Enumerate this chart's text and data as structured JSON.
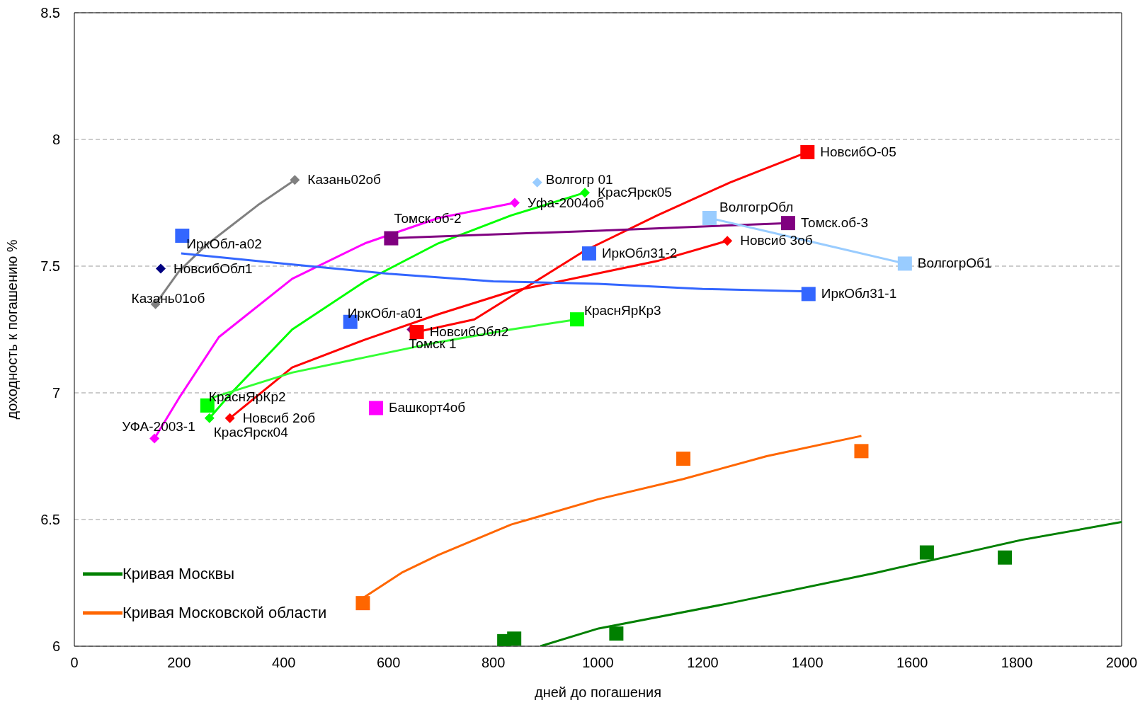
{
  "chart_data": {
    "type": "scatter",
    "xlabel": "дней до погашения",
    "ylabel": "доходность к погашению %",
    "xlim": [
      0,
      2000
    ],
    "xticks": [
      0,
      200,
      400,
      600,
      800,
      1000,
      1200,
      1400,
      1600,
      1800,
      2000
    ],
    "ylim": [
      6,
      8.5
    ],
    "yticks": [
      6,
      6.5,
      7,
      7.5,
      8,
      8.5
    ],
    "grid": "y",
    "legend": "bottom left",
    "series": [
      {
        "type": "line",
        "marker": "none",
        "color": "#808080",
        "x": [
          155,
          200,
          250,
          300,
          350,
          421
        ],
        "values": [
          7.35,
          7.48,
          7.58,
          7.66,
          7.74,
          7.84
        ]
      },
      {
        "type": "line",
        "marker": "none",
        "color": "#ff00ff",
        "x": [
          153,
          200,
          276,
          416,
          555,
          695,
          841
        ],
        "values": [
          6.82,
          6.98,
          7.22,
          7.45,
          7.59,
          7.69,
          7.75
        ]
      },
      {
        "type": "line",
        "marker": "none",
        "color": "#00ff00",
        "x": [
          258,
          300,
          416,
          555,
          695,
          834,
          975
        ],
        "values": [
          6.9,
          7.0,
          7.25,
          7.44,
          7.59,
          7.7,
          7.79
        ]
      },
      {
        "type": "line",
        "marker": "none",
        "color": "#ff0000",
        "x": [
          297,
          416,
          555,
          695,
          834,
          974,
          1113,
          1247
        ],
        "values": [
          6.9,
          7.1,
          7.21,
          7.31,
          7.4,
          7.46,
          7.52,
          7.6
        ]
      },
      {
        "type": "line",
        "marker": "none",
        "color": "#ff0000",
        "x": [
          654,
          764,
          834,
          974,
          1113,
          1252,
          1400
        ],
        "values": [
          7.24,
          7.29,
          7.38,
          7.56,
          7.7,
          7.83,
          7.95
        ]
      },
      {
        "type": "line",
        "marker": "none",
        "color": "#800080",
        "x": [
          605,
          1000,
          1363
        ],
        "values": [
          7.61,
          7.64,
          7.67
        ]
      },
      {
        "type": "line",
        "marker": "none",
        "color": "#99ccff",
        "x": [
          1213,
          1400,
          1586
        ],
        "values": [
          7.69,
          7.6,
          7.51
        ]
      },
      {
        "type": "line",
        "marker": "none",
        "color": "#3366ff",
        "x": [
          204,
          400,
          600,
          800,
          1000,
          1200,
          1402
        ],
        "values": [
          7.55,
          7.51,
          7.47,
          7.44,
          7.43,
          7.41,
          7.4
        ]
      },
      {
        "type": "line",
        "marker": "none",
        "color": "#33ff33",
        "x": [
          262,
          416,
          555,
          695,
          834,
          960
        ],
        "values": [
          6.98,
          7.08,
          7.14,
          7.2,
          7.25,
          7.29
        ]
      },
      {
        "type": "line",
        "marker": "none",
        "name": "Кривая Московской области",
        "color": "#ff6600",
        "x": [
          551,
          625,
          695,
          834,
          1000,
          1163,
          1322,
          1503
        ],
        "values": [
          6.19,
          6.29,
          6.36,
          6.48,
          6.58,
          6.66,
          6.75,
          6.83
        ]
      },
      {
        "type": "line",
        "marker": "none",
        "name": "Кривая Москвы",
        "color": "#008000",
        "x": [
          890,
          1001,
          1252,
          1531,
          1810,
          2000
        ],
        "values": [
          6.0,
          6.07,
          6.17,
          6.29,
          6.42,
          6.49
        ]
      },
      {
        "marker": "diamond",
        "color": "#808080",
        "x": [
          421,
          155
        ],
        "values": [
          7.84,
          7.35
        ]
      },
      {
        "marker": "diamond",
        "color": "#000080",
        "x": [
          165
        ],
        "values": [
          7.49
        ]
      },
      {
        "marker": "square",
        "color": "#3366ff",
        "x": [
          206,
          983,
          1402,
          527
        ],
        "values": [
          7.62,
          7.55,
          7.39,
          7.28
        ]
      },
      {
        "marker": "diamond",
        "color": "#99ccff",
        "x": [
          884
        ],
        "values": [
          7.83
        ]
      },
      {
        "marker": "square",
        "color": "#99ccff",
        "x": [
          1213,
          1586
        ],
        "values": [
          7.69,
          7.51
        ]
      },
      {
        "marker": "diamond",
        "color": "#00ff00",
        "x": [
          975,
          258
        ],
        "values": [
          7.79,
          6.9
        ]
      },
      {
        "marker": "square",
        "color": "#00ff00",
        "x": [
          960,
          254
        ],
        "values": [
          7.29,
          6.95
        ]
      },
      {
        "marker": "diamond",
        "color": "#ff00ff",
        "x": [
          841,
          153
        ],
        "values": [
          7.75,
          6.82
        ]
      },
      {
        "marker": "square",
        "color": "#ff00ff",
        "x": [
          576
        ],
        "values": [
          6.94
        ]
      },
      {
        "marker": "square",
        "color": "#800080",
        "x": [
          605,
          1363
        ],
        "values": [
          7.61,
          7.67
        ]
      },
      {
        "marker": "diamond",
        "color": "#800080",
        "x": [
          644
        ],
        "values": [
          7.25
        ]
      },
      {
        "marker": "square",
        "color": "#ff0000",
        "x": [
          1400,
          654
        ],
        "values": [
          7.95,
          7.24
        ]
      },
      {
        "marker": "diamond",
        "color": "#ff0000",
        "x": [
          1247,
          297
        ],
        "values": [
          7.6,
          6.9
        ]
      },
      {
        "marker": "square",
        "color": "#ff6600",
        "x": [
          551,
          1163,
          1503
        ],
        "values": [
          6.17,
          6.74,
          6.77
        ]
      },
      {
        "marker": "square",
        "color": "#008000",
        "x": [
          821,
          840,
          1035,
          1628,
          1777
        ],
        "values": [
          6.02,
          6.03,
          6.05,
          6.37,
          6.35
        ]
      }
    ],
    "annotations": [
      {
        "text": "Казань02об",
        "x": 421,
        "y": 7.84
      },
      {
        "text": "Казань01об",
        "x": 155,
        "y": 7.35
      },
      {
        "text": "НовсибОбл1",
        "x": 165,
        "y": 7.49
      },
      {
        "text": "ИркОбл-а02",
        "x": 206,
        "y": 7.62
      },
      {
        "text": "Волгогр 01",
        "x": 884,
        "y": 7.83
      },
      {
        "text": "КрасЯрск05",
        "x": 975,
        "y": 7.79
      },
      {
        "text": "Уфа-2004об",
        "x": 841,
        "y": 7.75
      },
      {
        "text": "Томск.об-2",
        "x": 605,
        "y": 7.61
      },
      {
        "text": "НовсибО-05",
        "x": 1400,
        "y": 7.95
      },
      {
        "text": "ВолгогрОбл",
        "x": 1213,
        "y": 7.69
      },
      {
        "text": "Томск.об-3",
        "x": 1363,
        "y": 7.67
      },
      {
        "text": "Новсиб 3об",
        "x": 1247,
        "y": 7.6
      },
      {
        "text": "ВолгогрОб1",
        "x": 1586,
        "y": 7.51
      },
      {
        "text": "ИркОбл31-2",
        "x": 983,
        "y": 7.55
      },
      {
        "text": "ИркОбл31-1",
        "x": 1402,
        "y": 7.39
      },
      {
        "text": "ИркОбл-а01",
        "x": 527,
        "y": 7.28
      },
      {
        "text": "НовсибОбл2",
        "x": 654,
        "y": 7.24
      },
      {
        "text": "Томск 1",
        "x": 644,
        "y": 7.25
      },
      {
        "text": "КраснЯрКр3",
        "x": 960,
        "y": 7.29
      },
      {
        "text": "КраснЯрКр2",
        "x": 254,
        "y": 6.95
      },
      {
        "text": "КрасЯрск04",
        "x": 258,
        "y": 6.9
      },
      {
        "text": "Новсиб 2об",
        "x": 297,
        "y": 6.9
      },
      {
        "text": "УФА-2003-1",
        "x": 153,
        "y": 6.82
      },
      {
        "text": "Башкорт4об",
        "x": 576,
        "y": 6.94
      }
    ]
  }
}
